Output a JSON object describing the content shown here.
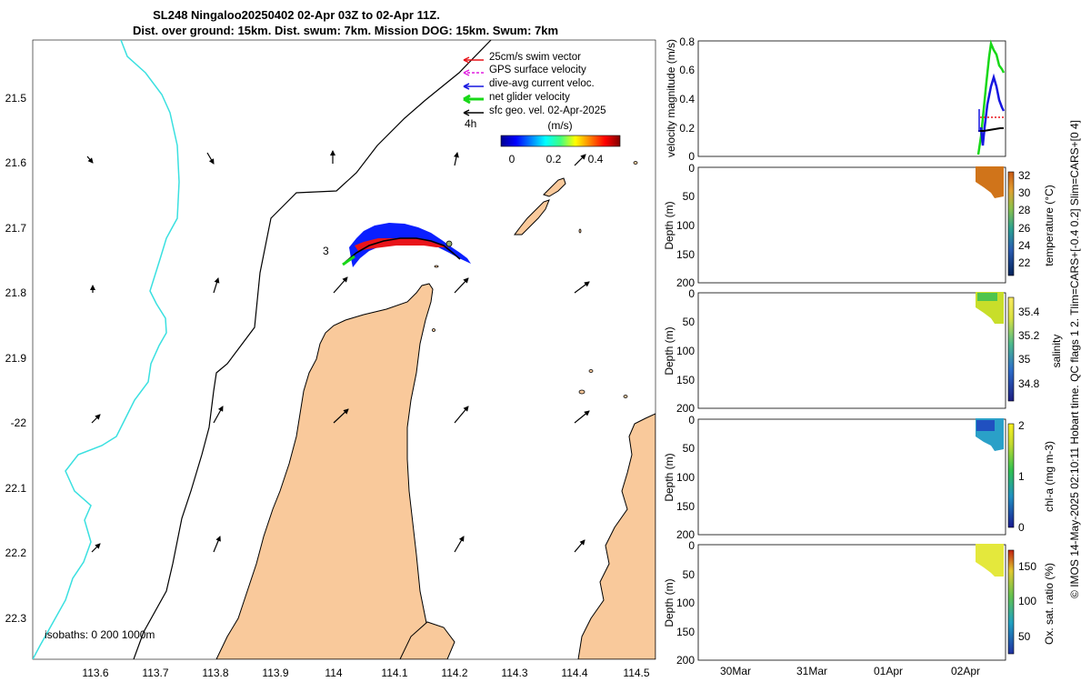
{
  "header": {
    "title_line1": "SL248 Ningaloo20250402 02-Apr 03Z to 02-Apr 11Z.",
    "title_line2": "Dist. over ground: 15km. Dist. swum: 7km. Mission DOG: 15km. Swum: 7km"
  },
  "map": {
    "lon_ticks": [
      "113.6",
      "113.7",
      "113.8",
      "113.9",
      "114",
      "114.1",
      "114.2",
      "114.3",
      "114.4",
      "114.5"
    ],
    "lat_ticks": [
      "21.5",
      "21.6",
      "21.7",
      "21.8",
      "21.9",
      "-22",
      "22.1",
      "22.2",
      "22.3"
    ],
    "isobaths_label": "isobaths: 0   200  1000m",
    "marker_start": "3",
    "marker_end": "4h",
    "colors": {
      "land": "#f9c99b",
      "track_blue": "#0a1fff",
      "track_red": "#e8141a",
      "track_green": "#18d818",
      "cyan": "#3ae0e0"
    }
  },
  "legend": {
    "items": [
      {
        "label": "25cm/s swim vector",
        "color": "#e8141a"
      },
      {
        "label": "GPS surface velocity",
        "color": "#e01ee0"
      },
      {
        "label": "dive-avg current veloc.",
        "color": "#1616e0"
      },
      {
        "label": "net glider velocity",
        "color": "#18d818"
      },
      {
        "label": "sfc geo. vel. 02-Apr-2025",
        "color": "#000000"
      }
    ],
    "colorbar_title": "(m/s)",
    "colorbar_ticks": [
      "0",
      "0.2",
      "0.4"
    ]
  },
  "panels": {
    "velocity": {
      "ylabel": "velocity magnitude (m/s)",
      "yticks": [
        "0",
        "0.2",
        "0.4",
        "0.6",
        "0.8"
      ]
    },
    "depth_ticks": [
      "0",
      "50",
      "100",
      "150",
      "200"
    ],
    "depth_label": "Depth (m)",
    "temperature": {
      "label": "temperature (°C)",
      "ticks": [
        "22",
        "24",
        "26",
        "28",
        "30",
        "32"
      ]
    },
    "salinity": {
      "label": "salinity",
      "ticks": [
        "34.8",
        "35",
        "35.2",
        "35.4"
      ]
    },
    "chla": {
      "label": "chl-a (mg m-3)",
      "ticks": [
        "0",
        "1",
        "2"
      ]
    },
    "oxygen": {
      "label": "Ox. sat. ratio (%)",
      "ticks": [
        "50",
        "100",
        "150"
      ]
    },
    "date_ticks": [
      "30Mar",
      "31Mar",
      "01Apr",
      "02Apr"
    ]
  },
  "side_text": "© IMOS 14-May-2025 02:10:11 Hobart time. QC flags 1  2. Tlim=CARS+[-0.4 0.2] Slim=CARS+[0 4]"
}
